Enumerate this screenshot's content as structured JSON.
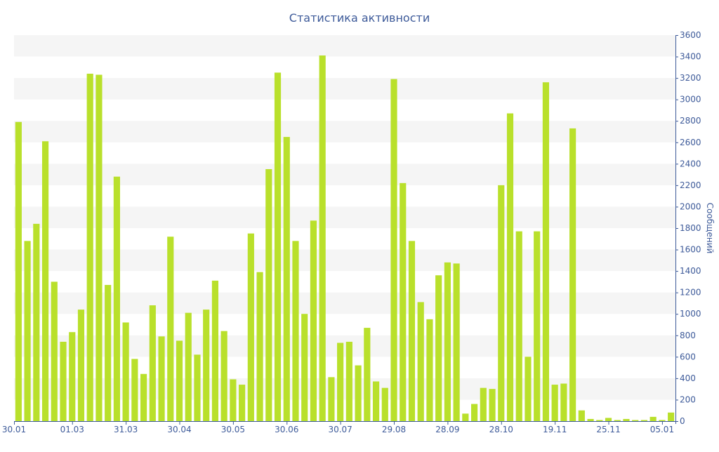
{
  "chart_data": {
    "type": "bar",
    "title": "Статистика активности",
    "xlabel": "",
    "ylabel": "Сообщений",
    "ylim": [
      0,
      3600
    ],
    "y_ticks": [
      0,
      200,
      400,
      600,
      800,
      1000,
      1200,
      1400,
      1600,
      1800,
      2000,
      2200,
      2400,
      2600,
      2800,
      3000,
      3200,
      3400,
      3600
    ],
    "y_axis_position": "right",
    "x_tick_labels": [
      {
        "index": 0,
        "label": "30.01"
      },
      {
        "index": 6,
        "label": "01.03"
      },
      {
        "index": 12,
        "label": "31.03"
      },
      {
        "index": 18,
        "label": "30.04"
      },
      {
        "index": 24,
        "label": "30.05"
      },
      {
        "index": 30,
        "label": "30.06"
      },
      {
        "index": 36,
        "label": "30.07"
      },
      {
        "index": 42,
        "label": "29.08"
      },
      {
        "index": 48,
        "label": "28.09"
      },
      {
        "index": 54,
        "label": "28.10"
      },
      {
        "index": 60,
        "label": "19.11"
      },
      {
        "index": 66,
        "label": "25.11"
      },
      {
        "index": 72,
        "label": "05.01"
      }
    ],
    "values": [
      2790,
      1680,
      1840,
      2610,
      1300,
      740,
      830,
      1040,
      3240,
      3230,
      1270,
      2280,
      920,
      580,
      440,
      1080,
      790,
      1720,
      750,
      1010,
      620,
      1040,
      1310,
      840,
      390,
      340,
      1750,
      1390,
      2350,
      3250,
      2650,
      1680,
      1000,
      1870,
      3410,
      410,
      730,
      740,
      520,
      870,
      370,
      310,
      3190,
      2220,
      1680,
      1110,
      950,
      1360,
      1480,
      1470,
      70,
      160,
      310,
      300,
      2200,
      2870,
      1770,
      600,
      1770,
      3160,
      340,
      350,
      2730,
      100,
      20,
      10,
      30,
      10,
      20,
      10,
      10,
      40,
      10,
      80
    ],
    "bar_color": "#b9e02b",
    "band_color": "#f5f5f5",
    "axis_color": "#3d5a99",
    "grid": "alternating horizontal bands",
    "legend": "none"
  }
}
